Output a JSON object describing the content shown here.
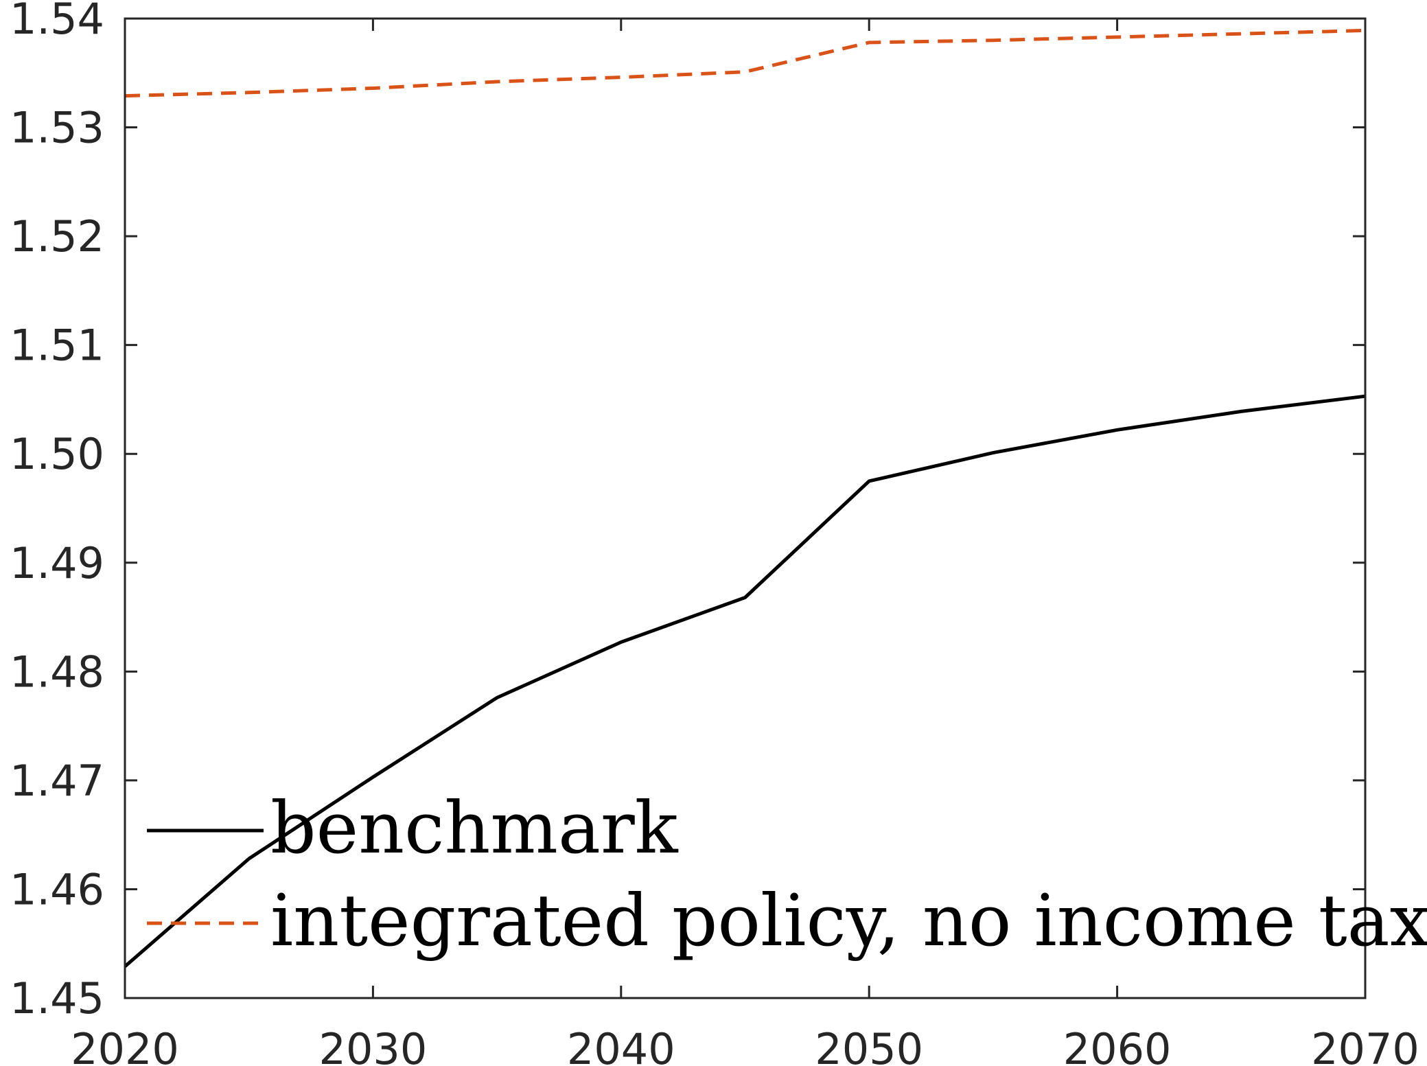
{
  "chart_data": {
    "type": "line",
    "title": "",
    "xlabel": "",
    "ylabel": "",
    "xlim": [
      2020,
      2070
    ],
    "ylim": [
      1.45,
      1.54
    ],
    "x_ticks": [
      2020,
      2030,
      2040,
      2050,
      2060,
      2070
    ],
    "x_tick_labels": [
      "2020",
      "2030",
      "2040",
      "2050",
      "2060",
      "2070"
    ],
    "y_ticks": [
      1.45,
      1.46,
      1.47,
      1.48,
      1.49,
      1.5,
      1.51,
      1.52,
      1.53,
      1.54
    ],
    "y_tick_labels": [
      "1.45",
      "1.46",
      "1.47",
      "1.48",
      "1.49",
      "1.50",
      "1.51",
      "1.52",
      "1.53",
      "1.54"
    ],
    "grid": false,
    "legend_position": "bottom-left",
    "x": [
      2020,
      2025,
      2030,
      2035,
      2040,
      2045,
      2050,
      2055,
      2060,
      2065,
      2070
    ],
    "series": [
      {
        "name": "benchmark",
        "color": "#000000",
        "style": "solid",
        "values": [
          1.4529,
          1.4628,
          1.4703,
          1.4776,
          1.4827,
          1.4868,
          1.4975,
          1.5001,
          1.5022,
          1.5039,
          1.5053
        ]
      },
      {
        "name": "integrated policy, no income tax",
        "color": "#D95319",
        "style": "dashed",
        "values": [
          1.5329,
          1.5332,
          1.5336,
          1.5342,
          1.5346,
          1.5351,
          1.5378,
          1.538,
          1.5383,
          1.5386,
          1.5389
        ]
      }
    ]
  }
}
